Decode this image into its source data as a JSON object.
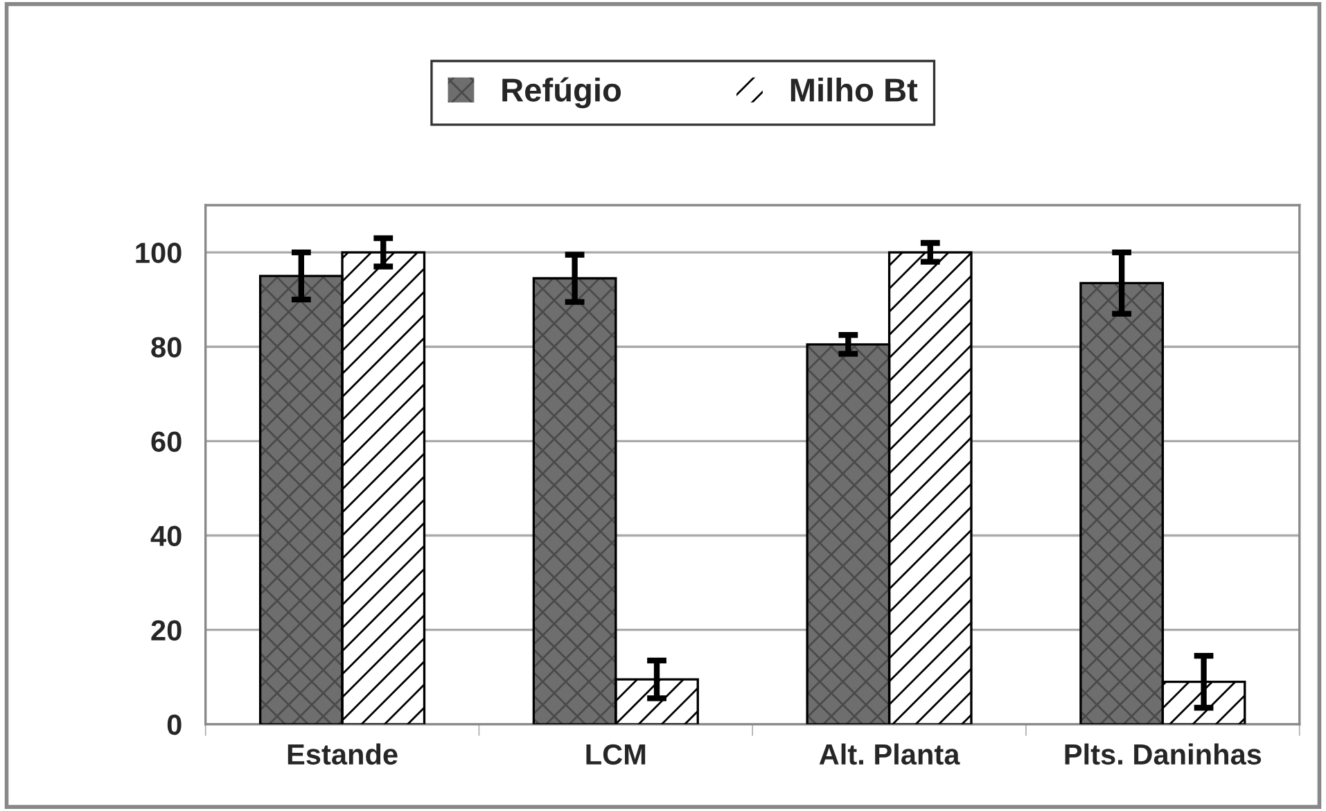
{
  "chart_data": {
    "type": "bar",
    "categories": [
      "Estande",
      "LCM",
      "Alt. Planta",
      "Plts. Daninhas"
    ],
    "series": [
      {
        "name": "Refúgio",
        "color": "#6e6e6e",
        "values": [
          95,
          94.5,
          80.5,
          93.5
        ],
        "errors": [
          5,
          5,
          2,
          6.5
        ]
      },
      {
        "name": "Milho Bt",
        "color": "#ffffff",
        "values": [
          100,
          9.5,
          100,
          9
        ],
        "errors": [
          3,
          4,
          2,
          5.5
        ]
      }
    ],
    "ylim": [
      0,
      110
    ],
    "yticks": [
      0,
      20,
      40,
      60,
      80,
      100
    ],
    "grid": "y",
    "legend": "top"
  }
}
